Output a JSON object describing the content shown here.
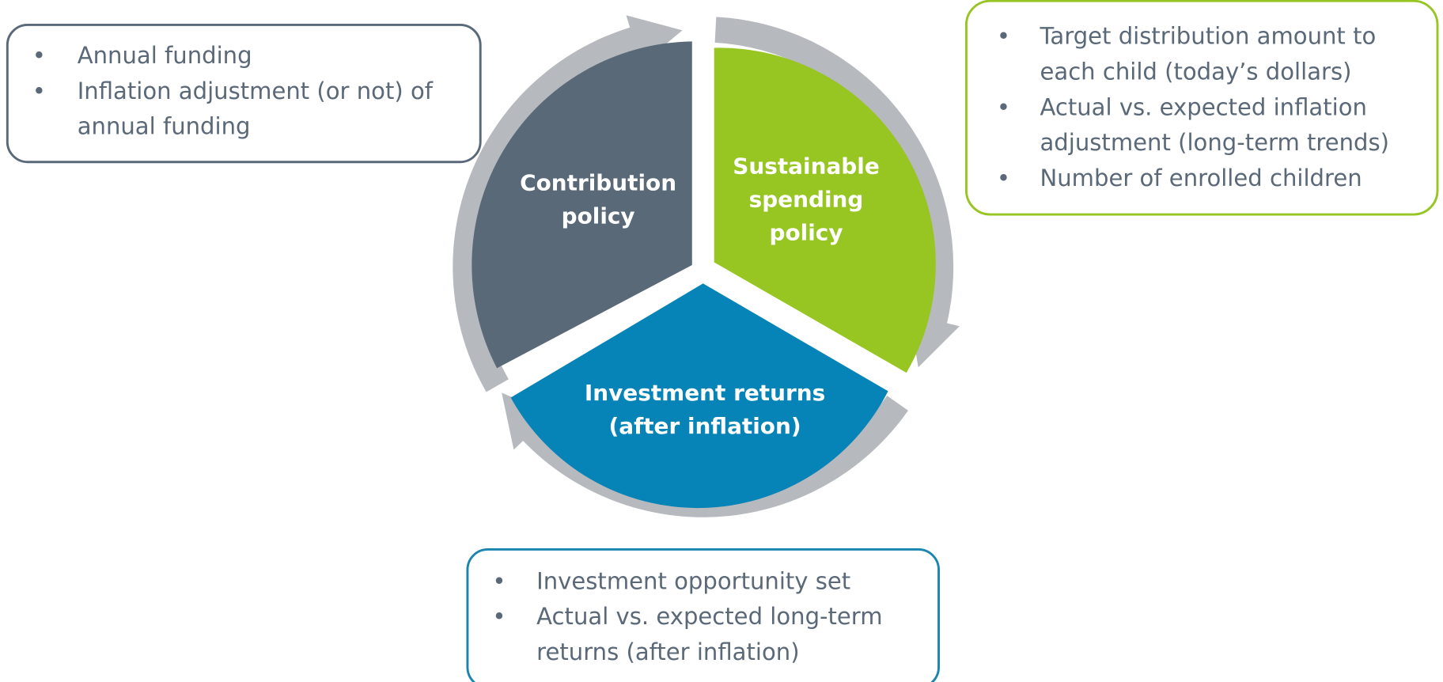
{
  "segments": [
    {
      "label": [
        "Contribution",
        "policy"
      ]
    },
    {
      "label": [
        "Sustainable",
        "spending",
        "policy"
      ]
    },
    {
      "label": [
        "Investment returns",
        "(after inflation)"
      ]
    }
  ],
  "boxes": [
    {
      "bullets": [
        {
          "lines": [
            "Annual funding"
          ]
        },
        {
          "lines": [
            "Inflation adjustment (or not) of",
            "annual funding"
          ]
        }
      ]
    },
    {
      "bullets": [
        {
          "lines": [
            "Target distribution amount to",
            "each child (today’s dollars)"
          ]
        },
        {
          "lines": [
            "Actual vs. expected inflation",
            "adjustment (long-term trends)"
          ]
        },
        {
          "lines": [
            "Number of enrolled children"
          ]
        }
      ]
    },
    {
      "bullets": [
        {
          "lines": [
            "Investment opportunity set"
          ]
        },
        {
          "lines": [
            "Actual vs. expected long-term",
            "returns (after inflation)"
          ]
        }
      ]
    }
  ]
}
